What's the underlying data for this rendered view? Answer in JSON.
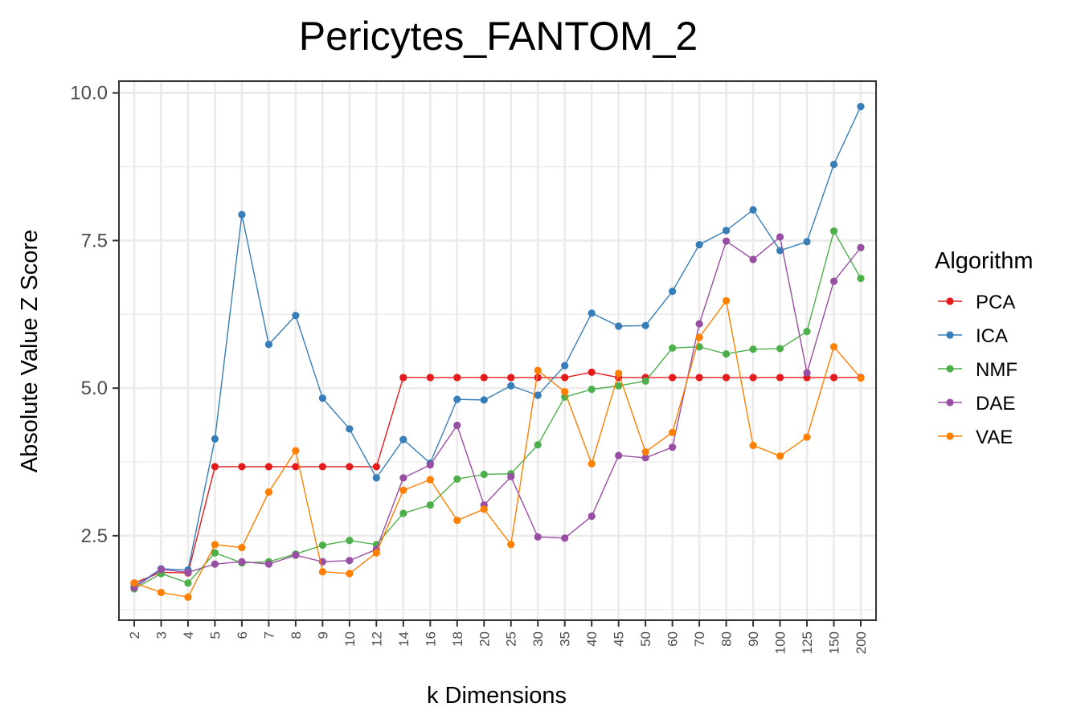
{
  "chart_data": {
    "type": "line",
    "title": "Pericytes_FANTOM_2",
    "xlabel": "k Dimensions",
    "ylabel": "Absolute Value Z Score",
    "categories": [
      "2",
      "3",
      "4",
      "5",
      "6",
      "7",
      "8",
      "9",
      "10",
      "12",
      "14",
      "16",
      "18",
      "20",
      "25",
      "30",
      "35",
      "40",
      "45",
      "50",
      "60",
      "70",
      "80",
      "90",
      "100",
      "125",
      "150",
      "200"
    ],
    "yticks": [
      "2.5",
      "5.0",
      "7.5",
      "10.0"
    ],
    "ytick_values": [
      2.5,
      5.0,
      7.5,
      10.0
    ],
    "ylim": [
      1.07,
      10.2
    ],
    "grid": true,
    "legend": {
      "title": "Algorithm",
      "position": "right"
    },
    "series": [
      {
        "name": "PCA",
        "color": "#E41A1C",
        "values": [
          1.7,
          1.88,
          1.87,
          3.67,
          3.67,
          3.67,
          3.67,
          3.67,
          3.67,
          3.67,
          5.18,
          5.18,
          5.18,
          5.18,
          5.18,
          5.18,
          5.18,
          5.27,
          5.18,
          5.18,
          5.18,
          5.18,
          5.18,
          5.18,
          5.18,
          5.18,
          5.18,
          5.18
        ]
      },
      {
        "name": "ICA",
        "color": "#377EB8",
        "values": [
          1.64,
          1.94,
          1.92,
          4.14,
          7.94,
          5.74,
          6.23,
          4.83,
          4.31,
          3.48,
          4.13,
          3.73,
          4.81,
          4.8,
          5.04,
          4.88,
          5.38,
          6.27,
          6.05,
          6.06,
          6.64,
          7.43,
          7.67,
          8.02,
          7.33,
          7.48,
          8.79,
          9.77
        ]
      },
      {
        "name": "NMF",
        "color": "#4DAF4A",
        "values": [
          1.6,
          1.86,
          1.7,
          2.21,
          2.04,
          2.06,
          2.19,
          2.34,
          2.42,
          2.35,
          2.88,
          3.02,
          3.46,
          3.54,
          3.55,
          4.04,
          4.85,
          4.98,
          5.04,
          5.12,
          5.68,
          5.7,
          5.58,
          5.66,
          5.67,
          5.96,
          7.66,
          6.86
        ]
      },
      {
        "name": "DAE",
        "color": "#984EA3",
        "values": [
          1.62,
          1.93,
          1.88,
          2.02,
          2.06,
          2.02,
          2.17,
          2.06,
          2.08,
          2.27,
          3.48,
          3.7,
          4.37,
          3.02,
          3.5,
          2.48,
          2.46,
          2.83,
          3.86,
          3.82,
          4.0,
          6.09,
          7.49,
          7.18,
          7.56,
          5.26,
          6.81,
          7.38
        ]
      },
      {
        "name": "VAE",
        "color": "#FF7F00",
        "values": [
          1.7,
          1.54,
          1.46,
          2.35,
          2.3,
          3.24,
          3.94,
          1.89,
          1.86,
          2.21,
          3.27,
          3.45,
          2.76,
          2.95,
          2.35,
          5.3,
          4.94,
          3.72,
          5.25,
          3.92,
          4.25,
          5.86,
          6.48,
          4.03,
          3.85,
          4.17,
          5.7,
          5.17
        ]
      }
    ]
  }
}
